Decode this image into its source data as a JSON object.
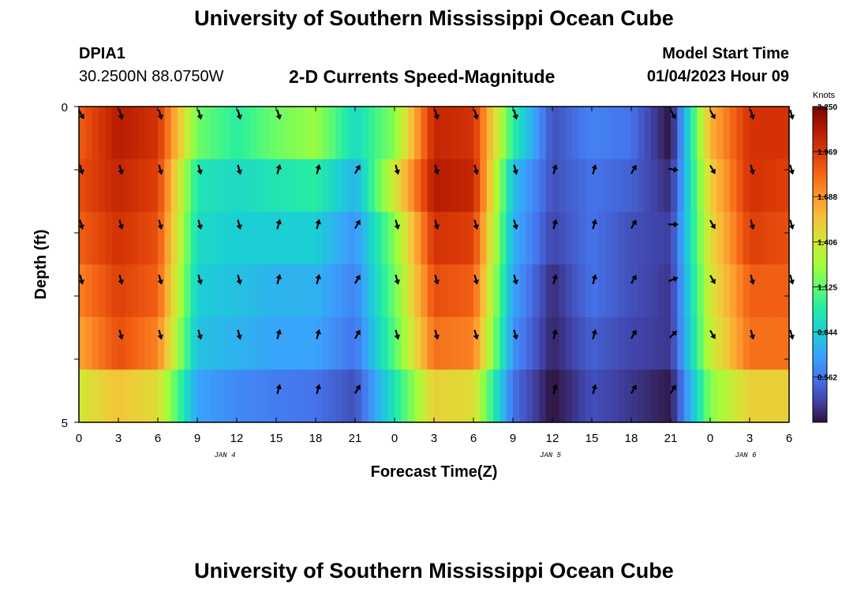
{
  "header": {
    "title": "University of Southern Mississippi Ocean Cube",
    "station": "DPIA1",
    "coords": "30.2500N  88.0750W",
    "plot_title": "2-D Currents Speed-Magnitude",
    "model_start_label": "Model Start Time",
    "model_start_value": "01/04/2023 Hour 09"
  },
  "footer": {
    "title": "University of Southern Mississippi Ocean Cube"
  },
  "chart_data": {
    "type": "heatmap",
    "title": "2-D Currents Speed-Magnitude",
    "xlabel": "Forecast Time(Z)",
    "ylabel": "Depth (ft)",
    "x_tick_labels": [
      "0",
      "3",
      "6",
      "9",
      "12",
      "15",
      "18",
      "21",
      "0",
      "3",
      "6",
      "9",
      "12",
      "15",
      "18",
      "21",
      "0",
      "3",
      "6"
    ],
    "day_labels": [
      {
        "text": "JAN 4",
        "at_tick": 3.7
      },
      {
        "text": "JAN 5",
        "at_tick": 11.95
      },
      {
        "text": "JAN 6",
        "at_tick": 16.9
      }
    ],
    "y_tick_labels": [
      "0",
      "5"
    ],
    "ylim": [
      0,
      5
    ],
    "colorbar": {
      "unit": "Knots",
      "labels": [
        "2.250",
        "1.969",
        "1.688",
        "1.406",
        "1.125",
        "0.844",
        "0.562"
      ],
      "min": 0.28,
      "max": 2.25
    },
    "hours": [
      0,
      3,
      6,
      9,
      12,
      15,
      18,
      21,
      24,
      27,
      30,
      33,
      36,
      39,
      42,
      45,
      48,
      51,
      54
    ],
    "speed_rows": [
      [
        1.85,
        2.1,
        2.0,
        1.15,
        1.0,
        1.15,
        1.25,
        0.9,
        1.2,
        2.05,
        2.0,
        1.0,
        0.45,
        0.6,
        0.55,
        0.28,
        1.6,
        2.0,
        2.0
      ],
      [
        1.9,
        2.05,
        1.95,
        0.95,
        0.9,
        0.95,
        1.0,
        0.75,
        1.4,
        2.1,
        2.05,
        0.8,
        0.45,
        0.55,
        0.5,
        0.35,
        1.5,
        2.0,
        1.95
      ],
      [
        1.85,
        2.0,
        1.9,
        0.9,
        0.85,
        0.85,
        0.85,
        0.65,
        1.2,
        2.0,
        1.95,
        0.75,
        0.42,
        0.55,
        0.45,
        0.4,
        1.45,
        1.95,
        1.9
      ],
      [
        1.75,
        1.95,
        1.85,
        0.85,
        0.8,
        0.75,
        0.75,
        0.6,
        1.15,
        1.9,
        1.85,
        0.7,
        0.35,
        0.55,
        0.45,
        0.38,
        1.4,
        1.85,
        1.85
      ],
      [
        1.65,
        1.9,
        1.75,
        0.8,
        0.75,
        0.7,
        0.7,
        0.55,
        1.1,
        1.8,
        1.75,
        0.65,
        0.33,
        0.5,
        0.42,
        0.38,
        1.35,
        1.8,
        1.8
      ],
      [
        1.4,
        1.55,
        1.45,
        0.7,
        0.62,
        0.58,
        0.55,
        0.45,
        0.95,
        1.5,
        1.45,
        0.55,
        0.28,
        0.45,
        0.38,
        0.3,
        1.2,
        1.5,
        1.5
      ]
    ],
    "arrow_rows": [
      {
        "from_col": 0,
        "dirs": [
          150,
          165,
          165,
          165,
          165,
          165,
          null,
          null,
          null,
          165,
          165,
          165,
          null,
          null,
          null,
          150,
          150,
          165,
          165
        ]
      },
      {
        "from_col": 0,
        "dirs": [
          165,
          165,
          165,
          165,
          165,
          15,
          15,
          30,
          165,
          165,
          165,
          165,
          15,
          15,
          30,
          100,
          150,
          165,
          165
        ]
      },
      {
        "from_col": 0,
        "dirs": [
          165,
          165,
          165,
          165,
          165,
          15,
          15,
          30,
          165,
          165,
          165,
          165,
          15,
          15,
          30,
          90,
          150,
          165,
          165
        ]
      },
      {
        "from_col": 0,
        "dirs": [
          165,
          165,
          165,
          165,
          165,
          15,
          15,
          30,
          165,
          165,
          165,
          165,
          15,
          15,
          30,
          70,
          150,
          165,
          165
        ]
      },
      {
        "from_col": 0,
        "dirs": [
          null,
          165,
          165,
          165,
          165,
          15,
          15,
          30,
          165,
          165,
          165,
          165,
          15,
          15,
          30,
          45,
          150,
          165,
          165
        ]
      },
      {
        "from_col": 0,
        "dirs": [
          null,
          null,
          null,
          null,
          null,
          15,
          15,
          30,
          null,
          null,
          null,
          null,
          15,
          15,
          30,
          30,
          null,
          null,
          null
        ]
      }
    ]
  }
}
